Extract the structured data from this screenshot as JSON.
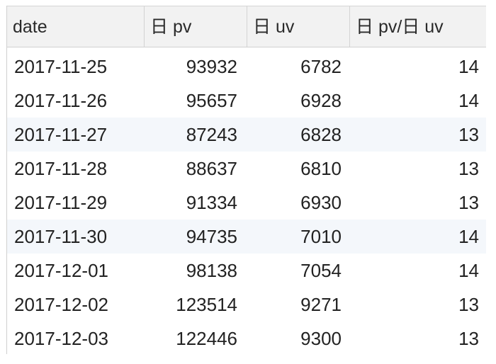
{
  "table": {
    "columns": [
      "date",
      "日 pv",
      "日 uv",
      "日 pv/日 uv"
    ],
    "rows": [
      [
        "2017-11-25",
        "93932",
        "6782",
        "14"
      ],
      [
        "2017-11-26",
        "95657",
        "6928",
        "14"
      ],
      [
        "2017-11-27",
        "87243",
        "6828",
        "13"
      ],
      [
        "2017-11-28",
        "88637",
        "6810",
        "13"
      ],
      [
        "2017-11-29",
        "91334",
        "6930",
        "13"
      ],
      [
        "2017-11-30",
        "94735",
        "7010",
        "14"
      ],
      [
        "2017-12-01",
        "98138",
        "7054",
        "14"
      ],
      [
        "2017-12-02",
        "123514",
        "9271",
        "13"
      ],
      [
        "2017-12-03",
        "122446",
        "9300",
        "13"
      ]
    ],
    "highlighted_rows": [
      2,
      5
    ],
    "colors": {
      "header_bg": "#f2f2f2",
      "highlight_bg": "#f4f7fb",
      "text": "#222222"
    }
  }
}
